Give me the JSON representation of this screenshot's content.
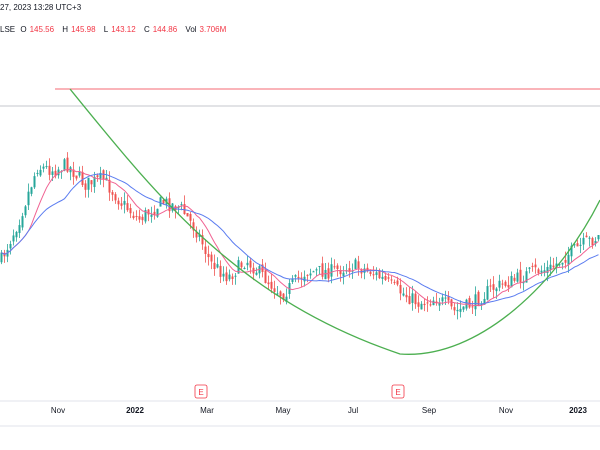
{
  "header": {
    "datetime": "27, 2023 13:28 UTC+3",
    "exchange": "LSE",
    "open_label": "O",
    "open": "145.56",
    "high_label": "H",
    "high": "145.98",
    "low_label": "L",
    "low": "143.12",
    "close_label": "C",
    "close": "144.86",
    "vol_label": "Vol",
    "vol": "3.706M"
  },
  "chart_data": {
    "type": "candlestick",
    "x_tick_labels": [
      "Nov",
      "2022",
      "Mar",
      "May",
      "Jul",
      "Sep",
      "Nov",
      "2023"
    ],
    "event_markers": [
      {
        "label": "E",
        "month": "Feb/Mar 2022"
      },
      {
        "label": "E",
        "month": "Aug 2022"
      }
    ],
    "overlays": [
      {
        "kind": "horizontal-line",
        "color": "#f23645"
      },
      {
        "kind": "horizontal-line",
        "color": "#b2b5be"
      },
      {
        "kind": "moving-average",
        "color": "#f06292"
      },
      {
        "kind": "moving-average",
        "color": "#5b7cf0"
      },
      {
        "kind": "cup-curve",
        "color": "#4caf50"
      }
    ],
    "colors": {
      "up": "#26a69a",
      "down": "#ef5350"
    },
    "price_trend": [
      [
        0.0,
        0.62
      ],
      [
        0.03,
        0.48
      ],
      [
        0.06,
        0.3
      ],
      [
        0.09,
        0.31
      ],
      [
        0.11,
        0.29
      ],
      [
        0.14,
        0.36
      ],
      [
        0.17,
        0.34
      ],
      [
        0.2,
        0.42
      ],
      [
        0.23,
        0.48
      ],
      [
        0.27,
        0.42
      ],
      [
        0.3,
        0.44
      ],
      [
        0.33,
        0.53
      ],
      [
        0.35,
        0.63
      ],
      [
        0.38,
        0.68
      ],
      [
        0.41,
        0.62
      ],
      [
        0.44,
        0.68
      ],
      [
        0.47,
        0.74
      ],
      [
        0.51,
        0.66
      ],
      [
        0.55,
        0.66
      ],
      [
        0.59,
        0.64
      ],
      [
        0.62,
        0.66
      ],
      [
        0.66,
        0.72
      ],
      [
        0.7,
        0.77
      ],
      [
        0.73,
        0.75
      ],
      [
        0.76,
        0.8
      ],
      [
        0.79,
        0.77
      ],
      [
        0.82,
        0.72
      ],
      [
        0.86,
        0.69
      ],
      [
        0.89,
        0.66
      ],
      [
        0.92,
        0.65
      ],
      [
        0.95,
        0.6
      ],
      [
        0.98,
        0.56
      ],
      [
        1.0,
        0.54
      ]
    ]
  }
}
